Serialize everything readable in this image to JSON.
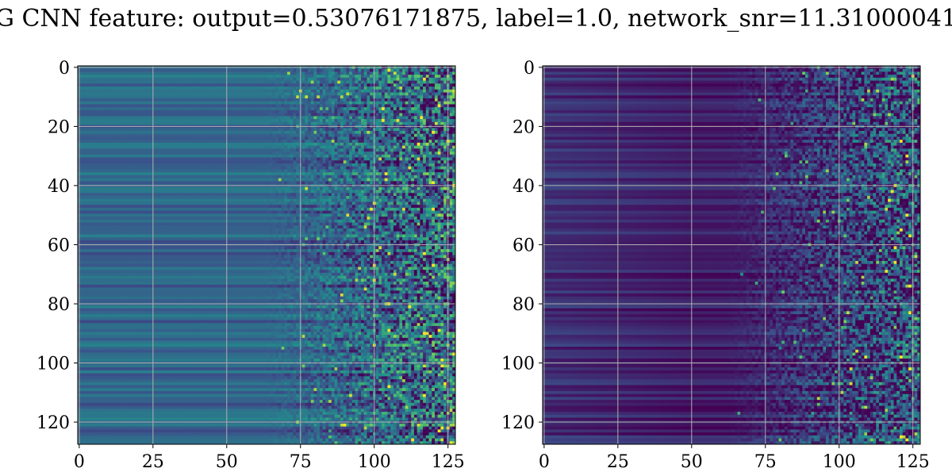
{
  "chart_data": [
    {
      "type": "heatmap",
      "title": "",
      "xlabel": "",
      "ylabel": "",
      "grid": true,
      "xlim": [
        -0.5,
        127.5
      ],
      "ylim": [
        127.5,
        -0.5
      ],
      "shape": [
        128,
        128
      ],
      "colormap": "viridis",
      "x_ticks": [
        0,
        25,
        50,
        75,
        100,
        125
      ],
      "y_ticks": [
        0,
        20,
        40,
        60,
        80,
        100,
        120
      ]
    },
    {
      "type": "heatmap",
      "title": "",
      "xlabel": "",
      "ylabel": "",
      "grid": true,
      "xlim": [
        -0.5,
        127.5
      ],
      "ylim": [
        127.5,
        -0.5
      ],
      "shape": [
        128,
        128
      ],
      "colormap": "viridis",
      "x_ticks": [
        0,
        25,
        50,
        75,
        100,
        125
      ],
      "y_ticks": [
        0,
        20,
        40,
        60,
        80,
        100,
        120
      ]
    }
  ],
  "figure": {
    "suptitle": "G CNN feature: output=0.53076171875, label=1.0, network_snr=11.31000041"
  },
  "colors": {
    "viridis_dark": "#440154",
    "viridis_blue": "#3b528b",
    "viridis_teal": "#21918c",
    "viridis_green": "#5ec962",
    "viridis_yellow": "#fde725",
    "grid": "#b0b0b0",
    "axes": "#000000"
  }
}
